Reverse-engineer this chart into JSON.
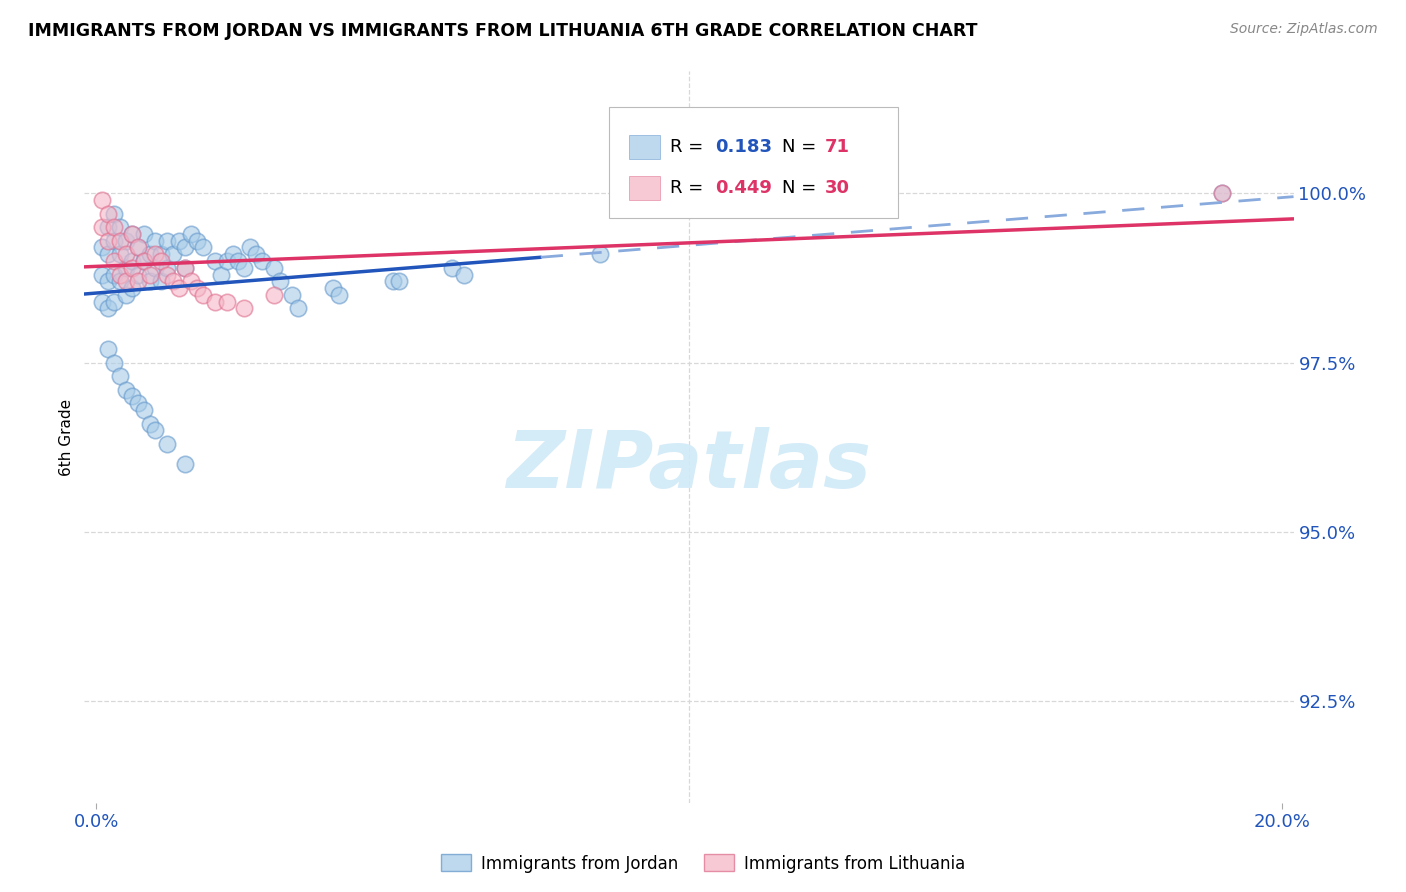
{
  "title": "IMMIGRANTS FROM JORDAN VS IMMIGRANTS FROM LITHUANIA 6TH GRADE CORRELATION CHART",
  "source": "Source: ZipAtlas.com",
  "ylabel": "6th Grade",
  "ytick_labels": [
    "92.5%",
    "95.0%",
    "97.5%",
    "100.0%"
  ],
  "ytick_values": [
    0.925,
    0.95,
    0.975,
    1.0
  ],
  "xlim": [
    -0.002,
    0.202
  ],
  "ylim": [
    0.91,
    1.018
  ],
  "jordan_color": "#a8cce8",
  "jordan_edge": "#6699cc",
  "lithuania_color": "#f5b8c8",
  "lithuania_edge": "#e07090",
  "line_jordan_solid": "#2255bb",
  "line_jordan_dash": "#88aadd",
  "line_lith_color": "#dd3366",
  "jordan_R": 0.183,
  "jordan_N": 71,
  "lithuania_R": 0.449,
  "lithuania_N": 30,
  "jordan_x": [
    0.001,
    0.001,
    0.001,
    0.002,
    0.002,
    0.002,
    0.002,
    0.003,
    0.003,
    0.003,
    0.003,
    0.004,
    0.004,
    0.004,
    0.005,
    0.005,
    0.005,
    0.006,
    0.006,
    0.006,
    0.007,
    0.007,
    0.008,
    0.008,
    0.009,
    0.009,
    0.01,
    0.01,
    0.011,
    0.011,
    0.012,
    0.012,
    0.013,
    0.014,
    0.015,
    0.015,
    0.016,
    0.017,
    0.018,
    0.02,
    0.021,
    0.022,
    0.023,
    0.024,
    0.025,
    0.026,
    0.027,
    0.028,
    0.03,
    0.031,
    0.033,
    0.034,
    0.04,
    0.041,
    0.05,
    0.051,
    0.06,
    0.062,
    0.085,
    0.19,
    0.002,
    0.003,
    0.004,
    0.005,
    0.006,
    0.007,
    0.008,
    0.009,
    0.01,
    0.012,
    0.015
  ],
  "jordan_y": [
    0.992,
    0.988,
    0.984,
    0.995,
    0.991,
    0.987,
    0.983,
    0.997,
    0.993,
    0.988,
    0.984,
    0.995,
    0.991,
    0.987,
    0.993,
    0.989,
    0.985,
    0.994,
    0.99,
    0.986,
    0.992,
    0.988,
    0.994,
    0.99,
    0.991,
    0.987,
    0.993,
    0.989,
    0.991,
    0.987,
    0.993,
    0.989,
    0.991,
    0.993,
    0.992,
    0.989,
    0.994,
    0.993,
    0.992,
    0.99,
    0.988,
    0.99,
    0.991,
    0.99,
    0.989,
    0.992,
    0.991,
    0.99,
    0.989,
    0.987,
    0.985,
    0.983,
    0.986,
    0.985,
    0.987,
    0.987,
    0.989,
    0.988,
    0.991,
    1.0,
    0.977,
    0.975,
    0.973,
    0.971,
    0.97,
    0.969,
    0.968,
    0.966,
    0.965,
    0.963,
    0.96
  ],
  "lithuania_x": [
    0.001,
    0.001,
    0.002,
    0.002,
    0.003,
    0.003,
    0.004,
    0.004,
    0.005,
    0.005,
    0.006,
    0.006,
    0.007,
    0.007,
    0.008,
    0.009,
    0.01,
    0.011,
    0.012,
    0.013,
    0.014,
    0.015,
    0.016,
    0.017,
    0.018,
    0.02,
    0.022,
    0.025,
    0.03,
    0.19
  ],
  "lithuania_y": [
    0.999,
    0.995,
    0.997,
    0.993,
    0.995,
    0.99,
    0.993,
    0.988,
    0.991,
    0.987,
    0.994,
    0.989,
    0.992,
    0.987,
    0.99,
    0.988,
    0.991,
    0.99,
    0.988,
    0.987,
    0.986,
    0.989,
    0.987,
    0.986,
    0.985,
    0.984,
    0.984,
    0.983,
    0.985,
    1.0
  ],
  "watermark_text": "ZIPatlas",
  "watermark_color": "#d0eaf8",
  "grid_color": "#d8d8d8",
  "bg_color": "#ffffff"
}
